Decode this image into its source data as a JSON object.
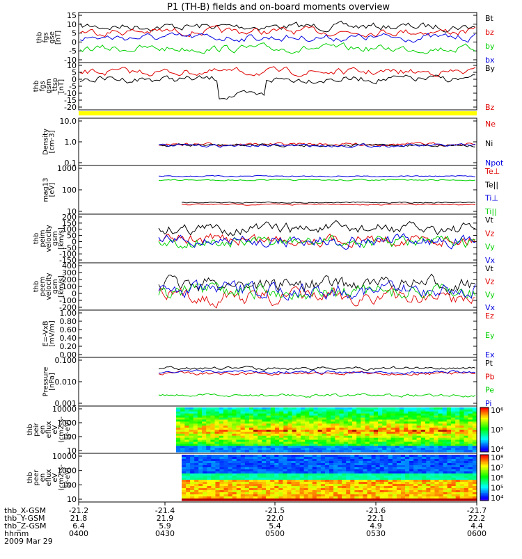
{
  "title": "P1 (TH-B) fields and on-board moments overview",
  "colors": {
    "black": "#000000",
    "red": "#e00000",
    "green": "#00d000",
    "blue": "#0000e0",
    "yellow": "#ffff00"
  },
  "chart_data": [
    {
      "id": "fgs",
      "type": "line",
      "ylabel": [
        "thb",
        "fgs",
        "gse",
        "[nT]"
      ],
      "yticks": [
        "15",
        "10",
        "5",
        "0",
        "-5",
        "-10"
      ],
      "ylim": [
        -10,
        15
      ],
      "series": [
        {
          "name": "Bt",
          "color": "black"
        },
        {
          "name": "bz",
          "color": "red"
        },
        {
          "name": "by",
          "color": "green"
        },
        {
          "name": "bx",
          "color": "blue"
        }
      ]
    },
    {
      "id": "fgs_gsm",
      "type": "line",
      "ylabel": [
        "thb",
        "fgs",
        "gsm",
        "_ttsp",
        "[nT]"
      ],
      "yticks": [
        "10",
        "5",
        "0",
        "-5",
        "-10",
        "-15",
        "-20"
      ],
      "ylim": [
        -22,
        12
      ],
      "series": [
        {
          "name": "By",
          "color": "black"
        },
        {
          "name": "Bz",
          "color": "red"
        }
      ]
    },
    {
      "id": "density",
      "type": "line",
      "scale": "log",
      "ylabel": [
        "Density",
        "[cm-3]"
      ],
      "yticks": [
        "10.0",
        "1.0",
        "0.1"
      ],
      "ylim": [
        0.1,
        10
      ],
      "series": [
        {
          "name": "Ne",
          "color": "red"
        },
        {
          "name": "Ni",
          "color": "black"
        },
        {
          "name": "Npot",
          "color": "blue"
        }
      ]
    },
    {
      "id": "temp",
      "type": "line",
      "scale": "log",
      "ylabel": [
        "mag13",
        "[eV]"
      ],
      "yticks": [
        "1000",
        "100",
        "10"
      ],
      "ylim": [
        10,
        3000
      ],
      "series": [
        {
          "name": "Te⊥",
          "color": "red"
        },
        {
          "name": "Te||",
          "color": "black"
        },
        {
          "name": "Ti⊥",
          "color": "blue"
        },
        {
          "name": "Ti||",
          "color": "green"
        }
      ]
    },
    {
      "id": "peim_v",
      "type": "line",
      "ylabel": [
        "thb",
        "peim",
        "velocity",
        "gsm",
        "[km/s]"
      ],
      "yticks": [
        "200",
        "150",
        "100",
        "50",
        "0",
        "-50",
        "-100",
        "-150"
      ],
      "ylim": [
        -150,
        200
      ],
      "series": [
        {
          "name": "Vt",
          "color": "black"
        },
        {
          "name": "Vz",
          "color": "red"
        },
        {
          "name": "Vy",
          "color": "green"
        },
        {
          "name": "Vx",
          "color": "blue"
        }
      ]
    },
    {
      "id": "peem_v",
      "type": "line",
      "ylabel": [
        "thb",
        "peem",
        "velocity",
        "gsm",
        "[km/s]"
      ],
      "yticks": [
        "400",
        "300",
        "200",
        "100",
        "0",
        "-100",
        "-200"
      ],
      "ylim": [
        -200,
        400
      ],
      "series": [
        {
          "name": "Vt",
          "color": "black"
        },
        {
          "name": "Vz",
          "color": "red"
        },
        {
          "name": "Vy",
          "color": "green"
        },
        {
          "name": "Vx",
          "color": "blue"
        }
      ]
    },
    {
      "id": "efield",
      "type": "line",
      "ylabel": [
        "E=-VxB",
        "[mV/m]"
      ],
      "yticks": [
        "1.00",
        "0.80",
        "0.60",
        "0.40",
        "0.20",
        "0.00"
      ],
      "ylim": [
        0,
        1
      ],
      "series": [
        {
          "name": "Ez",
          "color": "red"
        },
        {
          "name": "Ey",
          "color": "green"
        },
        {
          "name": "Ex",
          "color": "blue"
        }
      ]
    },
    {
      "id": "pressure",
      "type": "line",
      "scale": "log",
      "ylabel": [
        "Pressure",
        "[nPa]"
      ],
      "yticks": [
        "0.100",
        "0.010",
        "0.001"
      ],
      "ylim": [
        0.0005,
        0.3
      ],
      "series": [
        {
          "name": "Pt",
          "color": "black"
        },
        {
          "name": "Pb",
          "color": "red"
        },
        {
          "name": "Pe",
          "color": "green"
        },
        {
          "name": "Pi",
          "color": "blue"
        }
      ]
    },
    {
      "id": "peir_en",
      "type": "heatmap",
      "ylabel": [
        "thb",
        "peir",
        "en",
        "eflux",
        "eV",
        "(cm2-s-",
        "sr-eV)"
      ],
      "yticks": [
        "10000",
        "1000",
        "100",
        "10"
      ],
      "colorbar_ticks": [
        "10⁶",
        "10⁵",
        "10⁴"
      ]
    },
    {
      "id": "peer_en",
      "type": "heatmap",
      "ylabel": [
        "thb",
        "peer",
        "en",
        "eflux",
        "eV",
        "(cm2-s-",
        "sr-eV)"
      ],
      "yticks": [
        "10000",
        "1000",
        "100",
        "10"
      ],
      "colorbar_ticks": [
        "10⁸",
        "10⁷",
        "10⁶",
        "10⁵",
        "10⁴"
      ]
    }
  ],
  "x_axis": {
    "rows": [
      {
        "label": "thb_X-GSM",
        "values": [
          "-21.2",
          "-21.4",
          "-21.5",
          "-21.6",
          "-21.7"
        ]
      },
      {
        "label": "thb_Y-GSM",
        "values": [
          "21.8",
          "21.9",
          "22.0",
          "22.1",
          "22.2"
        ]
      },
      {
        "label": "thb_Z-GSM",
        "values": [
          "6.4",
          "5.9",
          "5.4",
          "4.9",
          "4.4"
        ]
      },
      {
        "label": "hhmm",
        "values": [
          "0400",
          "0430",
          "0500",
          "0530",
          "0600"
        ]
      }
    ],
    "date": "2009 Mar 29"
  }
}
